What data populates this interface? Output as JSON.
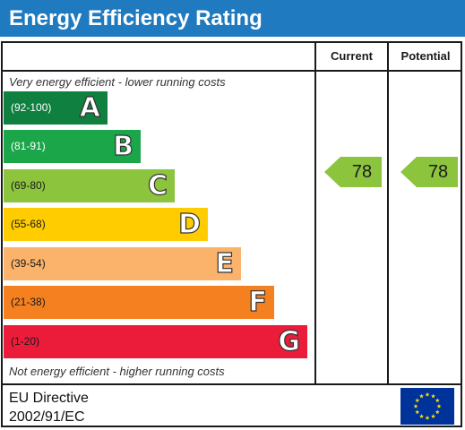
{
  "title": "Energy Efficiency Rating",
  "columns": {
    "current": "Current",
    "potential": "Potential"
  },
  "notes": {
    "top": "Very energy efficient - lower running costs",
    "bottom": "Not energy efficient - higher running costs"
  },
  "bands": [
    {
      "range": "(92-100)",
      "letter": "A",
      "color": "#0f8040",
      "text_color": "#ffffff"
    },
    {
      "range": "(81-91)",
      "letter": "B",
      "color": "#1ba64a",
      "text_color": "#ffffff"
    },
    {
      "range": "(69-80)",
      "letter": "C",
      "color": "#8cc43e",
      "text_color": "#1a1a1a"
    },
    {
      "range": "(55-68)",
      "letter": "D",
      "color": "#ffcc00",
      "text_color": "#1a1a1a"
    },
    {
      "range": "(39-54)",
      "letter": "E",
      "color": "#fbb36b",
      "text_color": "#1a1a1a"
    },
    {
      "range": "(21-38)",
      "letter": "F",
      "color": "#f58020",
      "text_color": "#1a1a1a"
    },
    {
      "range": "(1-20)",
      "letter": "G",
      "color": "#ea1c3a",
      "text_color": "#1a1a1a"
    }
  ],
  "ratings": {
    "current": {
      "value": "78",
      "color": "#8cc43e"
    },
    "potential": {
      "value": "78",
      "color": "#8cc43e"
    }
  },
  "footer": {
    "line1": "EU Directive",
    "line2": "2002/91/EC",
    "flag_icon": "eu-flag-icon",
    "flag_color": "#003399",
    "star_color": "#ffdd00"
  },
  "header_color": "#1f7ac0"
}
